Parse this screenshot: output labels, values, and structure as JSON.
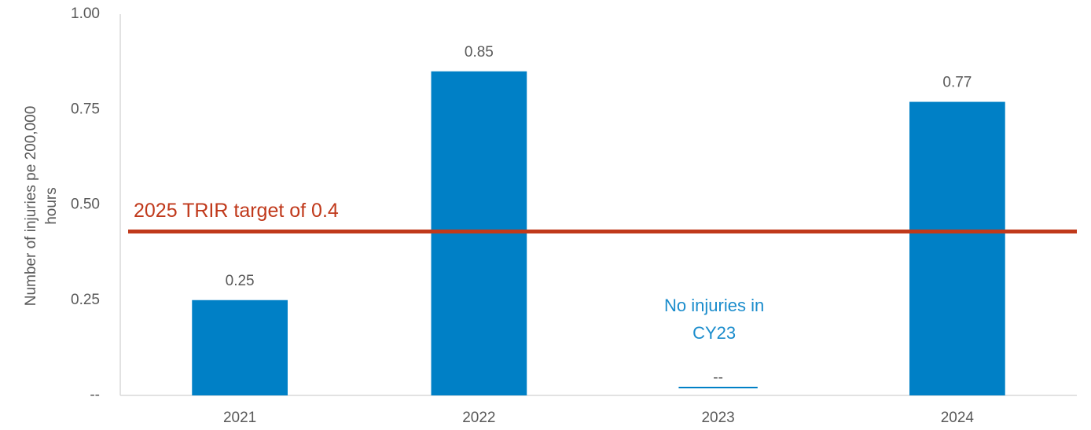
{
  "chart_data": {
    "type": "bar",
    "categories": [
      "2021",
      "2022",
      "2023",
      "2024"
    ],
    "values": [
      0.25,
      0.85,
      0,
      0.77
    ],
    "value_labels": [
      "0.25",
      "0.85",
      "--",
      "0.77"
    ],
    "color": "#0080c6",
    "ylim": [
      0,
      1
    ],
    "yticks": [
      {
        "value": 0,
        "label": "--"
      },
      0.25,
      {
        "value": 0.5,
        "label": "0.50"
      },
      0.75,
      {
        "value": 1,
        "label": "1.00"
      }
    ],
    "ylabel": [
      "Number of injuries pe 200,000",
      "hours"
    ],
    "grid": false,
    "target": {
      "label": "2025 TRIR target of 0.4",
      "value": 0.43,
      "color": "#c0391b"
    },
    "annotation": {
      "lines": [
        "No injuries in",
        "CY23"
      ],
      "color": "#1a8ccc"
    }
  }
}
